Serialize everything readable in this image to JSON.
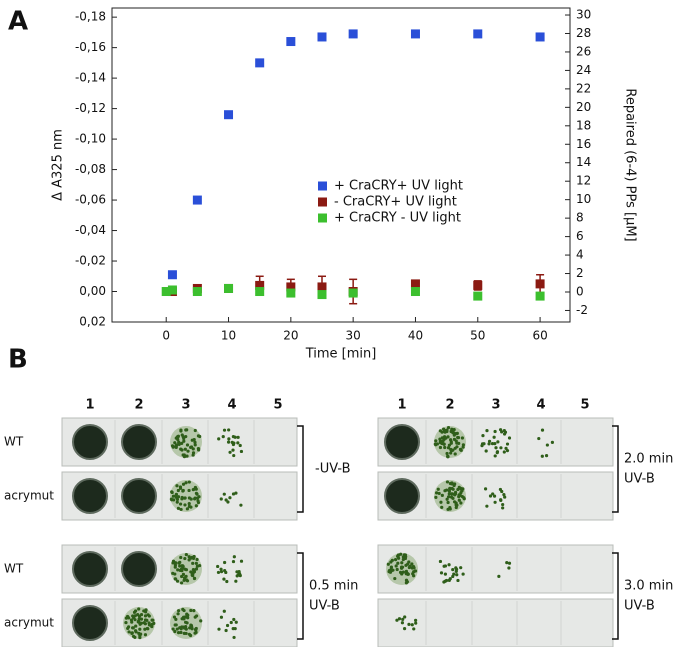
{
  "panel_labels": [
    "A",
    "B"
  ],
  "chart_data": {
    "type": "scatter",
    "xlabel": "Time [min]",
    "ylabel": "Δ A325 nm",
    "y2label": "Repaired (6-4) PPs [µM]",
    "xlim": [
      -8.7,
      64.8
    ],
    "xticks": [
      0,
      10,
      20,
      30,
      40,
      50,
      60
    ],
    "ylim": [
      0.02,
      -0.186
    ],
    "yticks": [
      {
        "value": 0.02,
        "label": "0,02"
      },
      {
        "value": 0,
        "label": "0,00"
      },
      {
        "value": -0.02,
        "label": "-0,02"
      },
      {
        "value": -0.04,
        "label": "-0,04"
      },
      {
        "value": -0.06,
        "label": "-0,06"
      },
      {
        "value": -0.08,
        "label": "-0,08"
      },
      {
        "value": -0.1,
        "label": "-0,10"
      },
      {
        "value": -0.12,
        "label": "-0,12"
      },
      {
        "value": -0.14,
        "label": "-0,14"
      },
      {
        "value": -0.16,
        "label": "-0,16"
      },
      {
        "value": -0.18,
        "label": "-0,18"
      }
    ],
    "y2lim": [
      -3.25,
      30.76
    ],
    "y2ticks": [
      -2,
      0,
      2,
      4,
      6,
      8,
      10,
      12,
      14,
      16,
      18,
      20,
      22,
      24,
      26,
      28,
      30
    ],
    "legend": "right",
    "series": [
      {
        "name": "+ CraCRY+ UV light",
        "color": "#2a4fd8",
        "x": [
          1,
          5,
          10,
          15,
          20,
          25,
          30,
          40,
          50,
          60
        ],
        "values": [
          -0.011,
          -0.06,
          -0.116,
          -0.15,
          -0.164,
          -0.167,
          -0.169,
          -0.169,
          -0.169,
          -0.167
        ],
        "errors": [
          0.001,
          0.001,
          0.002,
          0.001,
          0.001,
          0.002,
          0.001,
          0.002,
          0.001,
          0.001
        ]
      },
      {
        "name": "- CraCRY+ UV light",
        "color": "#8b1a12",
        "x": [
          1,
          5,
          10,
          15,
          20,
          25,
          30,
          40,
          50,
          60
        ],
        "values": [
          0,
          -0.002,
          -0.002,
          -0.004,
          -0.003,
          -0.003,
          0,
          -0.005,
          -0.004,
          -0.005
        ],
        "errors": [
          0,
          0,
          0,
          0.006,
          0.005,
          0.007,
          0.008,
          0.002,
          0.003,
          0.006
        ]
      },
      {
        "name": "+ CraCRY - UV light",
        "color": "#3cbf2e",
        "x": [
          0,
          1,
          5,
          10,
          15,
          20,
          25,
          30,
          40,
          50,
          60
        ],
        "values": [
          0,
          -0.001,
          0,
          -0.002,
          0,
          0.001,
          0.002,
          0.001,
          0,
          0.003,
          0.003
        ],
        "errors": [
          0,
          0,
          0,
          0,
          0,
          0,
          0,
          0,
          0,
          0,
          0
        ]
      }
    ]
  },
  "panel_b": {
    "columns": [
      "1",
      "2",
      "3",
      "4",
      "5"
    ],
    "rows": [
      "WT",
      "acrymut"
    ],
    "conditions": [
      [
        "-UV-B"
      ],
      [
        "0.5 min",
        "UV-B"
      ],
      [
        "2.0 min",
        "UV-B"
      ],
      [
        "3.0 min",
        "UV-B"
      ]
    ]
  }
}
